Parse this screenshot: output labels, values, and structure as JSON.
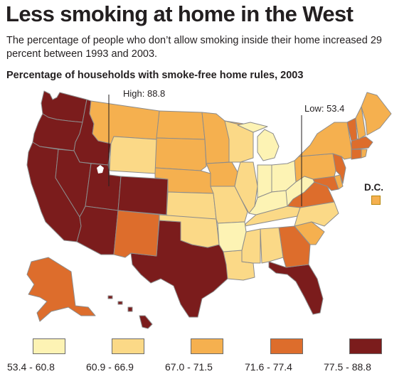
{
  "title": "Less smoking at home in the West",
  "subtitle_line1": "The percentage of people who don’t allow smoking inside their home increased 29",
  "subtitle_line2": "percent between 1993 and 2003.",
  "subhead": "Percentage of households with smoke-free home rules, 2003",
  "callouts": {
    "high": "High: 88.8",
    "low": "Low: 53.4",
    "dc": "D.C."
  },
  "colors": {
    "bin1": "#fdf3b4",
    "bin2": "#fbd987",
    "bin3": "#f5b04f",
    "bin4": "#dd6d2c",
    "bin5": "#7b1c1c",
    "border": "#8c8c8c",
    "dc": "#f5b04f"
  },
  "legend": [
    {
      "label": "53.4 - 60.8",
      "color": "#fdf3b4"
    },
    {
      "label": "60.9 - 66.9",
      "color": "#fbd987"
    },
    {
      "label": "67.0 - 71.5",
      "color": "#f5b04f"
    },
    {
      "label": "71.6 - 77.4",
      "color": "#dd6d2c"
    },
    {
      "label": "77.5 - 88.8",
      "color": "#7b1c1c"
    }
  ],
  "regions": [
    {
      "name": "Washington",
      "bin": 5
    },
    {
      "name": "Oregon",
      "bin": 5
    },
    {
      "name": "California",
      "bin": 5
    },
    {
      "name": "Idaho",
      "bin": 5
    },
    {
      "name": "Nevada",
      "bin": 5
    },
    {
      "name": "Utah",
      "bin": 5
    },
    {
      "name": "Arizona",
      "bin": 5
    },
    {
      "name": "Colorado",
      "bin": 5
    },
    {
      "name": "Texas",
      "bin": 5
    },
    {
      "name": "Florida",
      "bin": 5
    },
    {
      "name": "Hawaii",
      "bin": 5
    },
    {
      "name": "Alaska",
      "bin": 4
    },
    {
      "name": "New Mexico",
      "bin": 4
    },
    {
      "name": "Georgia",
      "bin": 4
    },
    {
      "name": "Virginia",
      "bin": 4
    },
    {
      "name": "Maryland",
      "bin": 4
    },
    {
      "name": "New Jersey",
      "bin": 4
    },
    {
      "name": "Connecticut",
      "bin": 4
    },
    {
      "name": "Massachusetts",
      "bin": 4
    },
    {
      "name": "Vermont",
      "bin": 4
    },
    {
      "name": "Montana",
      "bin": 3
    },
    {
      "name": "North Dakota",
      "bin": 3
    },
    {
      "name": "South Dakota",
      "bin": 3
    },
    {
      "name": "Minnesota",
      "bin": 3
    },
    {
      "name": "Nebraska",
      "bin": 3
    },
    {
      "name": "Iowa",
      "bin": 3
    },
    {
      "name": "Pennsylvania",
      "bin": 3
    },
    {
      "name": "New York",
      "bin": 3
    },
    {
      "name": "Maine",
      "bin": 3
    },
    {
      "name": "New Hampshire",
      "bin": 3
    },
    {
      "name": "South Carolina",
      "bin": 3
    },
    {
      "name": "Rhode Island",
      "bin": 3
    },
    {
      "name": "Delaware",
      "bin": 3
    },
    {
      "name": "Wyoming",
      "bin": 2
    },
    {
      "name": "Kansas",
      "bin": 2
    },
    {
      "name": "Oklahoma",
      "bin": 2
    },
    {
      "name": "Missouri",
      "bin": 2
    },
    {
      "name": "Wisconsin",
      "bin": 2
    },
    {
      "name": "Illinois",
      "bin": 2
    },
    {
      "name": "Louisiana",
      "bin": 2
    },
    {
      "name": "Mississippi",
      "bin": 2
    },
    {
      "name": "Alabama",
      "bin": 2
    },
    {
      "name": "Tennessee",
      "bin": 2
    },
    {
      "name": "North Carolina",
      "bin": 2
    },
    {
      "name": "Arkansas",
      "bin": 1
    },
    {
      "name": "Michigan",
      "bin": 1
    },
    {
      "name": "Indiana",
      "bin": 1
    },
    {
      "name": "Ohio",
      "bin": 1
    },
    {
      "name": "Kentucky",
      "bin": 1
    },
    {
      "name": "West Virginia",
      "bin": 1
    }
  ]
}
